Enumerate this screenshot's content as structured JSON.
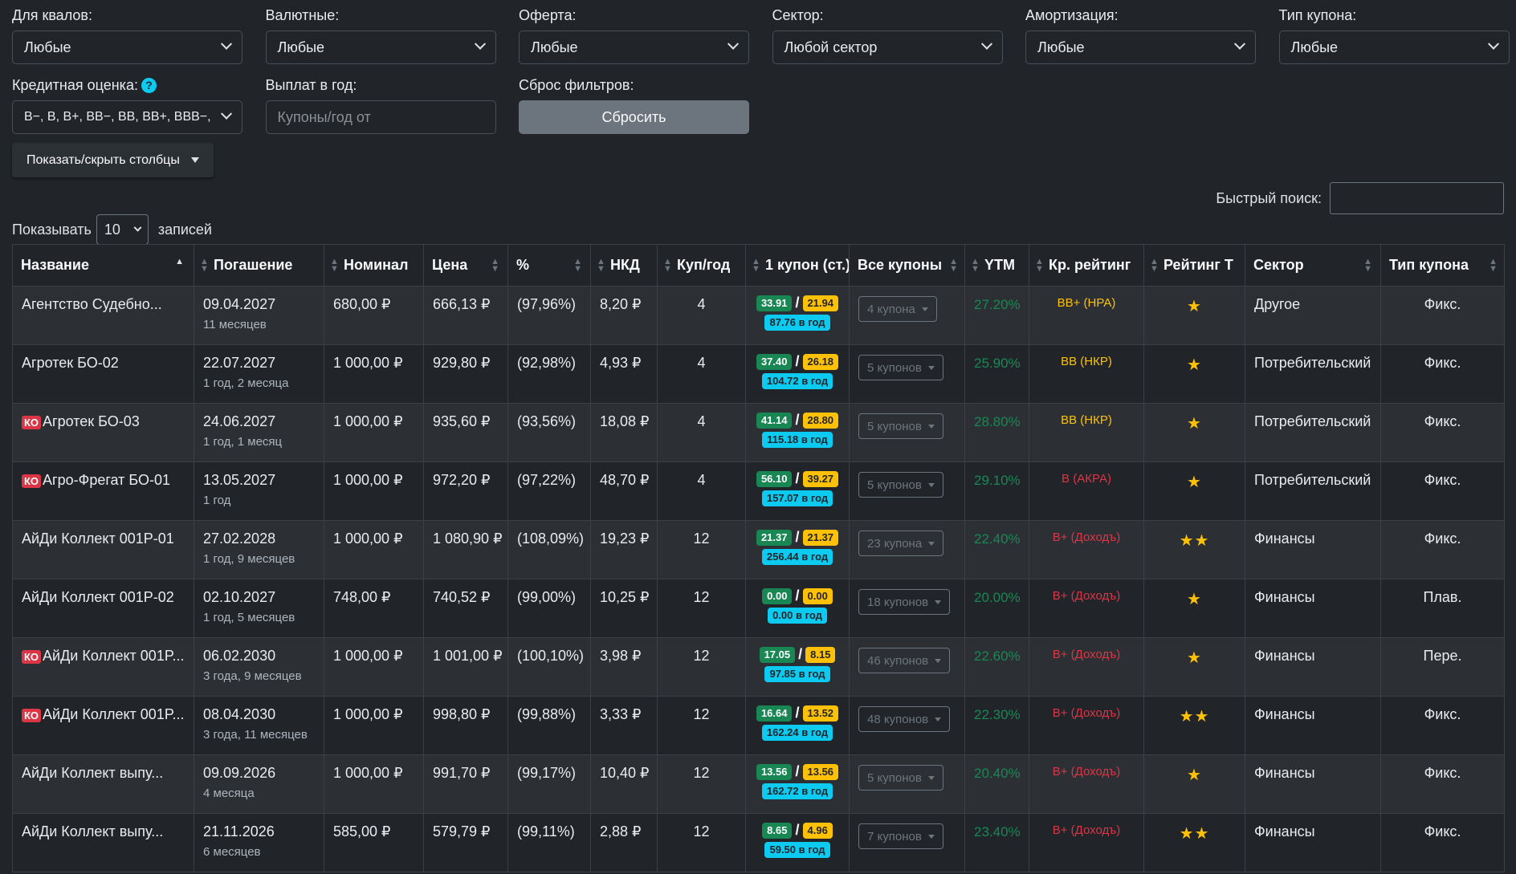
{
  "filters": {
    "row1": [
      {
        "label": "Для квалов:",
        "value": "Любые"
      },
      {
        "label": "Валютные:",
        "value": "Любые"
      },
      {
        "label": "Оферта:",
        "value": "Любые"
      },
      {
        "label": "Сектор:",
        "value": "Любой сектор"
      },
      {
        "label": "Амортизация:",
        "value": "Любые"
      },
      {
        "label": "Тип купона:",
        "value": "Любые"
      }
    ],
    "credit_label": "Кредитная оценка:",
    "credit_value": "B−, B, B+, BB−, BB, BB+, BBB−,",
    "credit_help": "?",
    "payouts_label": "Выплат в год:",
    "payouts_placeholder": "Купоны/год от",
    "reset_label": "Сброс фильтров:",
    "reset_button": "Сбросить"
  },
  "colvis_button": "Показать/скрыть столбцы",
  "search_label": "Быстрый поиск:",
  "length": {
    "prefix": "Показывать",
    "value": "10",
    "suffix": "записей"
  },
  "columns": [
    "Название",
    "Погашение",
    "Номинал",
    "Цена",
    "%",
    "НКД",
    "Куп/год",
    "1 купон (ст.)",
    "Все купоны",
    "YTM",
    "Кр. рейтинг",
    "Рейтинг Т",
    "Сектор",
    "Тип купона"
  ],
  "rows": [
    {
      "ko": false,
      "name": "Агентство Судебно...",
      "date": "09.04.2027",
      "term": "11 месяцев",
      "nominal": "680,00 ₽",
      "price": "666,13 ₽",
      "pct": "(97,96%)",
      "nkd": "8,20 ₽",
      "cpy": "4",
      "c1": "33.91",
      "c2": "21.94",
      "cy": "87.76 в год",
      "all": "4 купона",
      "ytm": "27.20%",
      "rating": "BB+ (НРА)",
      "rcolor": "yellow",
      "stars": "★",
      "sector": "Другое",
      "type": "Фикс."
    },
    {
      "ko": false,
      "name": "Агротек БО-02",
      "date": "22.07.2027",
      "term": "1 год, 2 месяца",
      "nominal": "1 000,00 ₽",
      "price": "929,80 ₽",
      "pct": "(92,98%)",
      "nkd": "4,93 ₽",
      "cpy": "4",
      "c1": "37.40",
      "c2": "26.18",
      "cy": "104.72 в год",
      "all": "5 купонов",
      "ytm": "25.90%",
      "rating": "BB (НКР)",
      "rcolor": "yellow",
      "stars": "★",
      "sector": "Потребительский",
      "type": "Фикс."
    },
    {
      "ko": true,
      "name": "Агротек БО-03",
      "date": "24.06.2027",
      "term": "1 год, 1 месяц",
      "nominal": "1 000,00 ₽",
      "price": "935,60 ₽",
      "pct": "(93,56%)",
      "nkd": "18,08 ₽",
      "cpy": "4",
      "c1": "41.14",
      "c2": "28.80",
      "cy": "115.18 в год",
      "all": "5 купонов",
      "ytm": "28.80%",
      "rating": "BB (НКР)",
      "rcolor": "yellow",
      "stars": "★",
      "sector": "Потребительский",
      "type": "Фикс."
    },
    {
      "ko": true,
      "name": "Агро-Фрегат БО-01",
      "date": "13.05.2027",
      "term": "1 год",
      "nominal": "1 000,00 ₽",
      "price": "972,20 ₽",
      "pct": "(97,22%)",
      "nkd": "48,70 ₽",
      "cpy": "4",
      "c1": "56.10",
      "c2": "39.27",
      "cy": "157.07 в год",
      "all": "5 купонов",
      "ytm": "29.10%",
      "rating": "B (АКРА)",
      "rcolor": "red",
      "stars": "★",
      "sector": "Потребительский",
      "type": "Фикс."
    },
    {
      "ko": false,
      "name": "АйДи Коллект 001P-01",
      "date": "27.02.2028",
      "term": "1 год, 9 месяцев",
      "nominal": "1 000,00 ₽",
      "price": "1 080,90 ₽",
      "pct": "(108,09%)",
      "nkd": "19,23 ₽",
      "cpy": "12",
      "c1": "21.37",
      "c2": "21.37",
      "cy": "256.44 в год",
      "all": "23 купона",
      "ytm": "22.40%",
      "rating": "B+ (Доходъ)",
      "rcolor": "red",
      "stars": "★★",
      "sector": "Финансы",
      "type": "Фикс."
    },
    {
      "ko": false,
      "name": "АйДи Коллект 001P-02",
      "date": "02.10.2027",
      "term": "1 год, 5 месяцев",
      "nominal": "748,00 ₽",
      "price": "740,52 ₽",
      "pct": "(99,00%)",
      "nkd": "10,25 ₽",
      "cpy": "12",
      "c1": "0.00",
      "c2": "0.00",
      "cy": "0.00 в год",
      "all": "18 купонов",
      "ytm": "20.00%",
      "rating": "B+ (Доходъ)",
      "rcolor": "red",
      "stars": "★",
      "sector": "Финансы",
      "type": "Плав."
    },
    {
      "ko": true,
      "name": "АйДи Коллект 001P...",
      "date": "06.02.2030",
      "term": "3 года, 9 месяцев",
      "nominal": "1 000,00 ₽",
      "price": "1 001,00 ₽",
      "pct": "(100,10%)",
      "nkd": "3,98 ₽",
      "cpy": "12",
      "c1": "17.05",
      "c2": "8.15",
      "cy": "97.85 в год",
      "all": "46 купонов",
      "ytm": "22.60%",
      "rating": "B+ (Доходъ)",
      "rcolor": "red",
      "stars": "★",
      "sector": "Финансы",
      "type": "Пере."
    },
    {
      "ko": true,
      "name": "АйДи Коллект 001P...",
      "date": "08.04.2030",
      "term": "3 года, 11 месяцев",
      "nominal": "1 000,00 ₽",
      "price": "998,80 ₽",
      "pct": "(99,88%)",
      "nkd": "3,33 ₽",
      "cpy": "12",
      "c1": "16.64",
      "c2": "13.52",
      "cy": "162.24 в год",
      "all": "48 купонов",
      "ytm": "22.30%",
      "rating": "B+ (Доходъ)",
      "rcolor": "red",
      "stars": "★★",
      "sector": "Финансы",
      "type": "Фикс."
    },
    {
      "ko": false,
      "name": "АйДи Коллект выпу...",
      "date": "09.09.2026",
      "term": "4 месяца",
      "nominal": "1 000,00 ₽",
      "price": "991,70 ₽",
      "pct": "(99,17%)",
      "nkd": "10,40 ₽",
      "cpy": "12",
      "c1": "13.56",
      "c2": "13.56",
      "cy": "162.72 в год",
      "all": "5 купонов",
      "ytm": "20.40%",
      "rating": "B+ (Доходъ)",
      "rcolor": "red",
      "stars": "★",
      "sector": "Финансы",
      "type": "Фикс."
    },
    {
      "ko": false,
      "name": "АйДи Коллект выпу...",
      "date": "21.11.2026",
      "term": "6 месяцев",
      "nominal": "585,00 ₽",
      "price": "579,79 ₽",
      "pct": "(99,11%)",
      "nkd": "2,88 ₽",
      "cpy": "12",
      "c1": "8.65",
      "c2": "4.96",
      "cy": "59.50 в год",
      "all": "7 купонов",
      "ytm": "23.40%",
      "rating": "B+ (Доходъ)",
      "rcolor": "red",
      "stars": "★★",
      "sector": "Финансы",
      "type": "Фикс."
    }
  ],
  "ko_label": "КО",
  "colors": {
    "bg": "#212529",
    "green": "#198754",
    "yellow": "#ffc107",
    "cyan": "#0dcaf0",
    "red": "#dc3545"
  }
}
